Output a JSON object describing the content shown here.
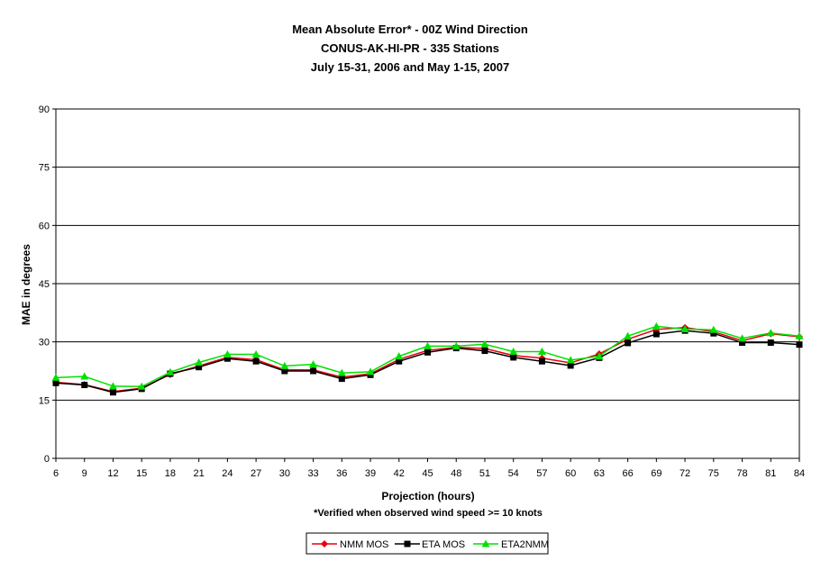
{
  "colors": {
    "nmm": "#e8000b",
    "eta": "#000000",
    "eta2nmm": "#00e000",
    "grid": "#000000",
    "background": "#ffffff"
  },
  "chart_data": {
    "type": "line",
    "title": "Mean Absolute Error* - 00Z Wind Direction",
    "subtitle": "CONUS-AK-HI-PR - 335 Stations",
    "subtitle2": "July 15-31, 2006 and May 1-15, 2007",
    "xlabel": "Projection (hours)",
    "ylabel": "MAE in degrees",
    "note": "*Verified when observed wind speed >= 10 knots",
    "ylim": [
      0,
      90
    ],
    "yticks": [
      0,
      15,
      30,
      45,
      60,
      75,
      90
    ],
    "grid": true,
    "legend_position": "bottom",
    "x": [
      6,
      9,
      12,
      15,
      18,
      21,
      24,
      27,
      30,
      33,
      36,
      39,
      42,
      45,
      48,
      51,
      54,
      57,
      60,
      63,
      66,
      69,
      72,
      75,
      78,
      81,
      84
    ],
    "series": [
      {
        "name": "NMM MOS",
        "marker": "diamond",
        "color": "#e8000b",
        "values": [
          19.6,
          19.0,
          17.2,
          18.1,
          21.6,
          23.8,
          26.0,
          25.4,
          22.8,
          22.8,
          20.9,
          21.8,
          25.5,
          27.8,
          28.6,
          28.3,
          26.5,
          25.8,
          24.6,
          26.9,
          30.7,
          33.2,
          33.7,
          32.6,
          30.3,
          32.1,
          31.3
        ]
      },
      {
        "name": "ETA MOS",
        "marker": "square",
        "color": "#000000",
        "values": [
          19.4,
          18.9,
          17.0,
          17.9,
          21.8,
          23.5,
          25.7,
          25.0,
          22.5,
          22.5,
          20.5,
          21.5,
          25.0,
          27.3,
          28.4,
          27.7,
          26.0,
          25.0,
          23.9,
          25.9,
          29.7,
          32.0,
          32.9,
          32.2,
          29.8,
          29.8,
          29.3
        ]
      },
      {
        "name": "ETA2NMM",
        "marker": "triangle",
        "color": "#00e000",
        "values": [
          20.8,
          21.1,
          18.6,
          18.5,
          22.2,
          24.7,
          26.8,
          26.8,
          23.8,
          24.2,
          22.0,
          22.3,
          26.3,
          28.9,
          28.9,
          29.4,
          27.5,
          27.5,
          25.3,
          26.3,
          31.5,
          34.0,
          33.3,
          33.1,
          30.9,
          32.3,
          31.5
        ]
      }
    ]
  }
}
